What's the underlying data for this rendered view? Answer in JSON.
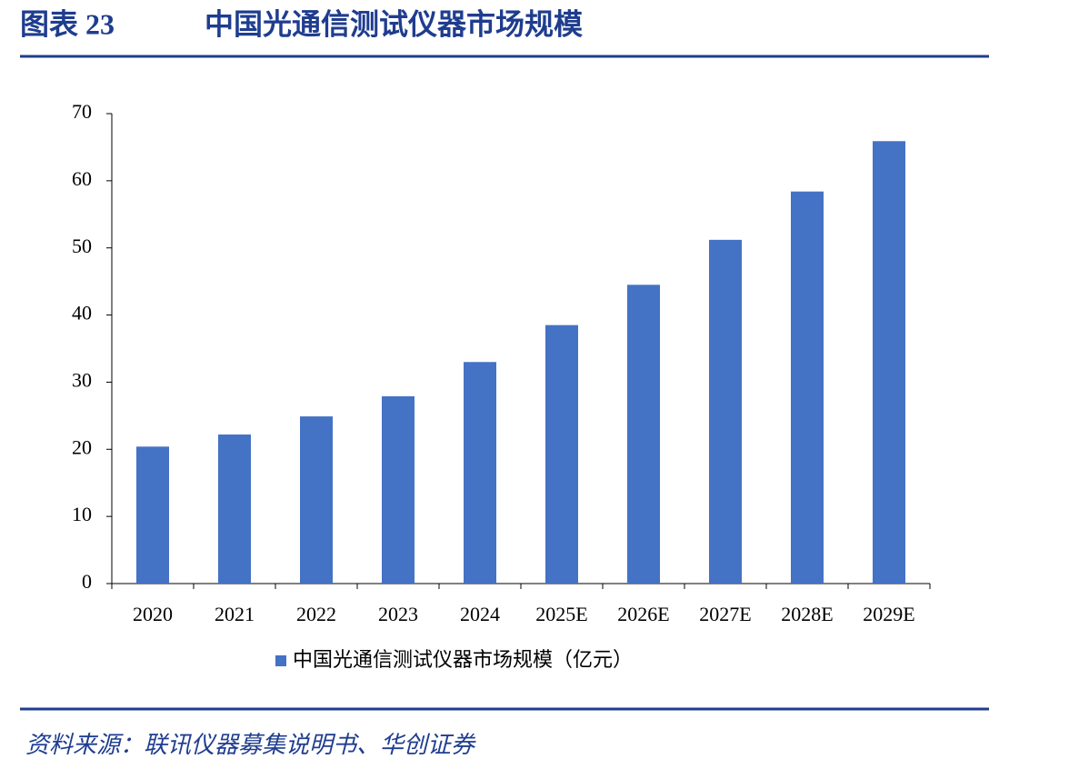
{
  "chart_data": {
    "type": "bar",
    "figure_label": "图表 23",
    "title": "中国光通信测试仪器市场规模",
    "source": "资料来源：联讯仪器募集说明书、华创证券",
    "categories": [
      "2020",
      "2021",
      "2022",
      "2023",
      "2024",
      "2025E",
      "2026E",
      "2027E",
      "2028E",
      "2029E"
    ],
    "series": [
      {
        "name": "中国光通信测试仪器市场规模（亿元）",
        "color": "#4472c4",
        "values": [
          20.4,
          22.2,
          24.9,
          27.9,
          33.0,
          38.5,
          44.5,
          51.2,
          58.4,
          65.9
        ]
      }
    ],
    "ylim": [
      0,
      70
    ],
    "yticks": [
      0,
      10,
      20,
      30,
      40,
      50,
      60,
      70
    ],
    "grid": false
  }
}
